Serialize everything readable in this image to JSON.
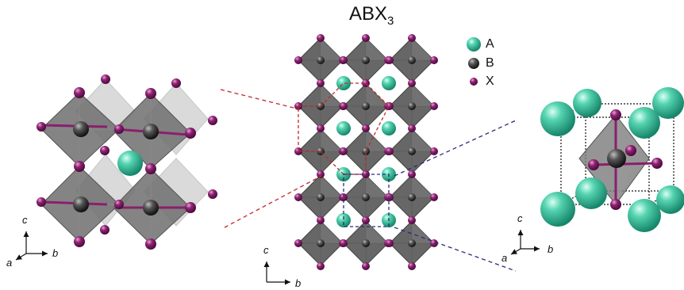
{
  "title": {
    "main": "ABX",
    "subscript": "3"
  },
  "legend": [
    {
      "label": "A",
      "color": "#3dbf9e"
    },
    {
      "label": "B",
      "color": "#3a3a3a"
    },
    {
      "label": "X",
      "color": "#8a1f6e"
    }
  ],
  "axes": {
    "left": {
      "c": "c",
      "a": "a",
      "b": "b"
    },
    "middle": {
      "c": "c",
      "b": "b"
    },
    "right": {
      "c": "c",
      "a": "a",
      "b": "b"
    }
  },
  "colors": {
    "octahedron": "#555555",
    "octahedron_light": "#9a9a9a",
    "a_site": "#3dbf9e",
    "b_site": "#3a3a3a",
    "x_site": "#8a1f6e",
    "red_dash": "#c0282d",
    "blue_dash": "#2a2a7a"
  }
}
